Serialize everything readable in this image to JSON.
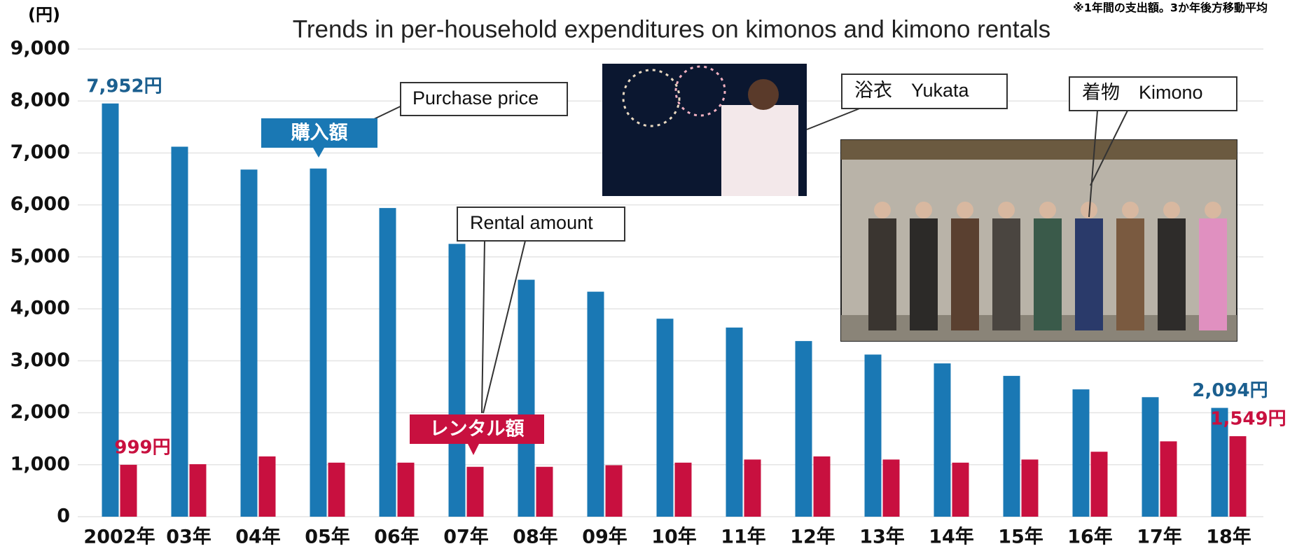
{
  "chart_data": {
    "type": "bar",
    "title": "Trends in per-household expenditures on kimonos and kimono rentals",
    "y_unit_label": "(円)",
    "note": "※1年間の支出額。3か年後方移動平均",
    "categories": [
      "2002年",
      "03年",
      "04年",
      "05年",
      "06年",
      "07年",
      "08年",
      "09年",
      "10年",
      "11年",
      "12年",
      "13年",
      "14年",
      "15年",
      "16年",
      "17年",
      "18年"
    ],
    "series": [
      {
        "name": "購入額",
        "color": "#1a78b4",
        "values": [
          7952,
          7120,
          6680,
          6700,
          5940,
          5250,
          4560,
          4330,
          3810,
          3640,
          3380,
          3120,
          2950,
          2710,
          2450,
          2300,
          2094
        ],
        "value_labels": [
          "7,952円",
          null,
          null,
          null,
          null,
          null,
          null,
          null,
          null,
          null,
          null,
          null,
          null,
          null,
          null,
          null,
          "2,094円"
        ]
      },
      {
        "name": "レンタル額",
        "color": "#c8103f",
        "values": [
          999,
          1010,
          1160,
          1040,
          1040,
          960,
          960,
          990,
          1040,
          1100,
          1160,
          1100,
          1040,
          1100,
          1250,
          1450,
          1549
        ],
        "value_labels": [
          "999円",
          null,
          null,
          null,
          null,
          null,
          null,
          null,
          null,
          null,
          null,
          null,
          null,
          null,
          null,
          null,
          "1,549円"
        ]
      }
    ],
    "ylim": [
      0,
      9000
    ],
    "yticks": [
      0,
      {
        "value": 1000,
        "label": "1,000"
      },
      {
        "value": 2000,
        "label": "2,000"
      },
      {
        "value": 3000,
        "label": "3,000"
      },
      {
        "value": 4000,
        "label": "4,000"
      },
      {
        "value": 5000,
        "label": "5,000"
      },
      {
        "value": 6000,
        "label": "6,000"
      },
      {
        "value": 7000,
        "label": "7,000"
      },
      {
        "value": 8000,
        "label": "8,000"
      },
      {
        "value": 9000,
        "label": "9,000"
      }
    ],
    "grid": true,
    "annotations": [
      "Purchase price",
      "Rental amount",
      "浴衣　Yukata",
      "着物　Kimono"
    ]
  }
}
